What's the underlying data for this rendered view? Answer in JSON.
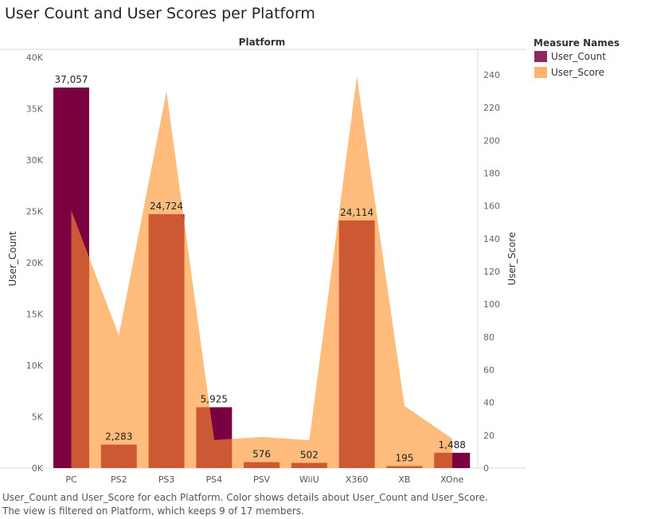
{
  "title": "User Count and User Scores per Platform",
  "caption": [
    "User_Count and User_Score for each Platform.  Color shows details about User_Count and User_Score.",
    "The view is filtered on Platform, which keeps 9 of 17 members."
  ],
  "legend": {
    "title": "Measure Names",
    "items": [
      {
        "label": "User_Count",
        "color": "#8b2a5c"
      },
      {
        "label": "User_Score",
        "color": "#ffb26b"
      }
    ]
  },
  "chart_data": {
    "type": "bar",
    "column_header": "Platform",
    "categories": [
      "PC",
      "PS2",
      "PS3",
      "PS4",
      "PSV",
      "WiiU",
      "X360",
      "XB",
      "XOne"
    ],
    "series": [
      {
        "name": "User_Count",
        "mark": "bar",
        "axis": "left",
        "color": "#7b0041",
        "values": [
          37057,
          2283,
          24724,
          5925,
          576,
          502,
          24114,
          195,
          1488
        ],
        "data_labels": [
          "37,057",
          "2,283",
          "24,724",
          "5,925",
          "576",
          "502",
          "24,114",
          "195",
          "1,488"
        ]
      },
      {
        "name": "User_Score",
        "mark": "area",
        "axis": "right",
        "color": "#ffbc7c",
        "values": [
          157,
          81,
          230,
          17,
          19,
          17,
          239,
          38,
          18
        ]
      }
    ],
    "overlap_color": "#cc5933",
    "y_left": {
      "label": "User_Count",
      "range": [
        0,
        40000
      ],
      "ticks": [
        "0K",
        "5K",
        "10K",
        "15K",
        "20K",
        "25K",
        "30K",
        "35K",
        "40K"
      ]
    },
    "y_right": {
      "label": "User_Score",
      "range": [
        0,
        244
      ],
      "ticks": [
        "0",
        "20",
        "40",
        "60",
        "80",
        "100",
        "120",
        "140",
        "160",
        "180",
        "200",
        "220",
        "240"
      ]
    }
  }
}
